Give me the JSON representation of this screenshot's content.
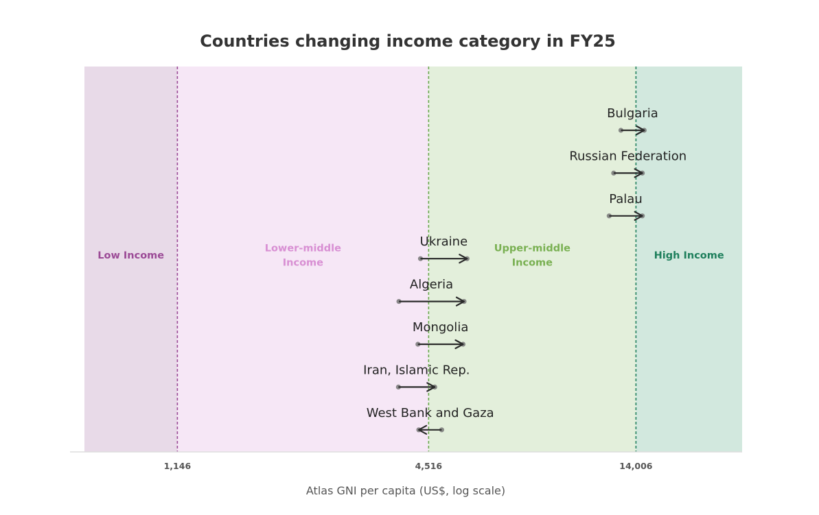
{
  "chart_data": {
    "type": "dumbbell-arrow",
    "title": "Countries changing income category in FY25",
    "xlabel": "Atlas GNI per capita (US$, log scale)",
    "xscale": "log",
    "xlim": [
      690,
      25000
    ],
    "xticks": [
      {
        "value": 1146,
        "label": "1,146"
      },
      {
        "value": 4516,
        "label": "4,516"
      },
      {
        "value": 14006,
        "label": "14,006"
      }
    ],
    "bands": [
      {
        "name": "Low Income",
        "lines": [
          "Low Income"
        ],
        "from": 690,
        "to": 1146,
        "fill": "#e8dae8",
        "label_color": "#9b4a96",
        "line_color": "#9b4a96"
      },
      {
        "name": "Lower-middle Income",
        "lines": [
          "Lower-middle",
          "Income"
        ],
        "from": 1146,
        "to": 4516,
        "fill": "#f6e7f6",
        "label_color": "#d88fd3",
        "line_color": "#6aa84f"
      },
      {
        "name": "Upper-middle Income",
        "lines": [
          "Upper-middle",
          "Income"
        ],
        "from": 4516,
        "to": 14006,
        "fill": "#e3efdb",
        "label_color": "#79b052",
        "line_color": "#1e7f5c"
      },
      {
        "name": "High Income",
        "lines": [
          "High Income"
        ],
        "from": 14006,
        "to": 25000,
        "fill": "#d2e8de",
        "label_color": "#1e7f5c",
        "line_color": null
      }
    ],
    "series": [
      {
        "country": "Bulgaria",
        "from": 12900,
        "to": 14650
      },
      {
        "country": "Russian Federation",
        "from": 12400,
        "to": 14500
      },
      {
        "country": "Palau",
        "from": 12100,
        "to": 14500
      },
      {
        "country": "Ukraine",
        "from": 4320,
        "to": 5570
      },
      {
        "country": "Algeria",
        "from": 3840,
        "to": 5480
      },
      {
        "country": "Mongolia",
        "from": 4260,
        "to": 5450
      },
      {
        "country": "Iran, Islamic Rep.",
        "from": 3830,
        "to": 4670
      },
      {
        "country": "West Bank and Gaza",
        "from": 4850,
        "to": 4280
      }
    ],
    "colors": {
      "arrow": "#2a2a2a",
      "dot": "#777777",
      "axis": "#dddddd"
    }
  }
}
